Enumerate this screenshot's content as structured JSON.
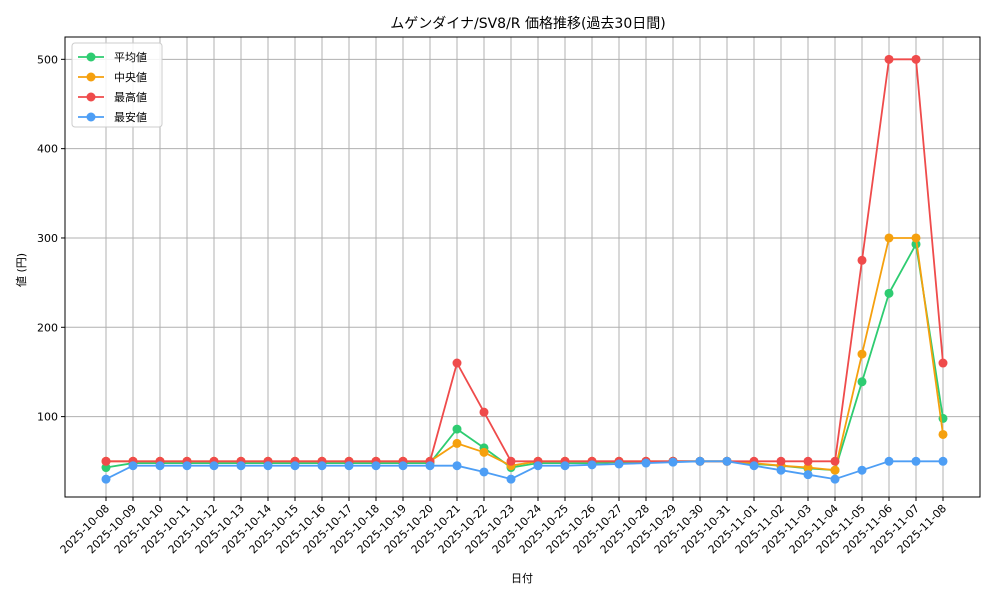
{
  "chart_data": {
    "type": "line",
    "title": "ムゲンダイナ/SV8/R 価格推移(過去30日間)",
    "xlabel": "日付",
    "ylabel": "値 (円)",
    "ylim": [
      10,
      525
    ],
    "yticks": [
      100,
      200,
      300,
      400,
      500
    ],
    "grid": true,
    "legend_position": "top-left",
    "categories": [
      "2025-10-08",
      "2025-10-09",
      "2025-10-10",
      "2025-10-11",
      "2025-10-12",
      "2025-10-13",
      "2025-10-14",
      "2025-10-15",
      "2025-10-16",
      "2025-10-17",
      "2025-10-18",
      "2025-10-19",
      "2025-10-20",
      "2025-10-21",
      "2025-10-22",
      "2025-10-23",
      "2025-10-24",
      "2025-10-25",
      "2025-10-26",
      "2025-10-27",
      "2025-10-28",
      "2025-10-29",
      "2025-10-30",
      "2025-10-31",
      "2025-11-01",
      "2025-11-02",
      "2025-11-03",
      "2025-11-04",
      "2025-11-05",
      "2025-11-06",
      "2025-11-07",
      "2025-11-08"
    ],
    "series": [
      {
        "name": "平均値",
        "color": "#2ecc71",
        "values": [
          43,
          48,
          48,
          48,
          48,
          48,
          48,
          48,
          48,
          48,
          48,
          48,
          48,
          86,
          65,
          43,
          48,
          48,
          48,
          49,
          49,
          50,
          50,
          50,
          47,
          45,
          42,
          40,
          139,
          238,
          293,
          98
        ]
      },
      {
        "name": "中央値",
        "color": "#f5a00e",
        "values": [
          50,
          50,
          50,
          50,
          50,
          50,
          50,
          50,
          50,
          50,
          50,
          50,
          50,
          70,
          60,
          45,
          50,
          50,
          50,
          50,
          50,
          50,
          50,
          50,
          48,
          45,
          43,
          40,
          170,
          300,
          300,
          80
        ]
      },
      {
        "name": "最高値",
        "color": "#ef4b4b",
        "values": [
          50,
          50,
          50,
          50,
          50,
          50,
          50,
          50,
          50,
          50,
          50,
          50,
          50,
          160,
          105,
          50,
          50,
          50,
          50,
          50,
          50,
          50,
          50,
          50,
          50,
          50,
          50,
          50,
          275,
          500,
          500,
          160
        ]
      },
      {
        "name": "最安値",
        "color": "#4d9ef5",
        "values": [
          30,
          45,
          45,
          45,
          45,
          45,
          45,
          45,
          45,
          45,
          45,
          45,
          45,
          45,
          38,
          30,
          45,
          45,
          46,
          47,
          48,
          49,
          50,
          50,
          45,
          40,
          35,
          30,
          40,
          50,
          50,
          50
        ]
      }
    ]
  }
}
